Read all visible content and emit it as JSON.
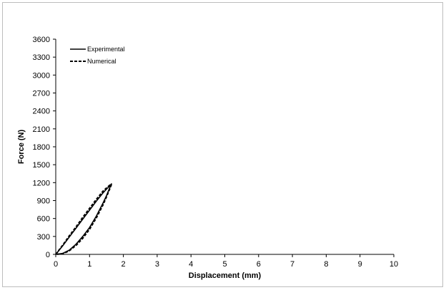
{
  "chart_data": {
    "type": "line",
    "xlabel": "Displacement (mm)",
    "ylabel": "Force (N)",
    "xlim": [
      0,
      10
    ],
    "ylim": [
      0,
      3600
    ],
    "x_ticks": [
      "0",
      "1",
      "2",
      "3",
      "4",
      "5",
      "6",
      "7",
      "8",
      "9",
      "10"
    ],
    "y_ticks": [
      "0",
      "300",
      "600",
      "900",
      "1200",
      "1500",
      "1800",
      "2100",
      "2400",
      "2700",
      "3000",
      "3300",
      "3600"
    ],
    "grid": false,
    "legend_position": "top-left",
    "series": [
      {
        "name": "Experimental",
        "style": "solid",
        "x": [
          0.0,
          0.2,
          0.4,
          0.6,
          0.8,
          1.0,
          1.2,
          1.4,
          1.6,
          1.65,
          1.6,
          1.5,
          1.4,
          1.2,
          1.0,
          0.8,
          0.6,
          0.4,
          0.2,
          0.0
        ],
        "y": [
          0,
          140,
          290,
          440,
          590,
          740,
          890,
          1030,
          1150,
          1180,
          1120,
          980,
          860,
          640,
          450,
          300,
          170,
          70,
          15,
          0
        ]
      },
      {
        "name": "Numerical",
        "style": "dashed",
        "x": [
          0.0,
          0.2,
          0.4,
          0.6,
          0.8,
          1.0,
          1.2,
          1.4,
          1.6,
          1.65,
          1.6,
          1.5,
          1.4,
          1.2,
          1.0,
          0.8,
          0.6,
          0.4,
          0.2,
          0.0
        ],
        "y": [
          0,
          150,
          310,
          460,
          620,
          770,
          920,
          1060,
          1160,
          1170,
          1100,
          960,
          830,
          610,
          420,
          270,
          150,
          60,
          10,
          0
        ]
      }
    ]
  }
}
